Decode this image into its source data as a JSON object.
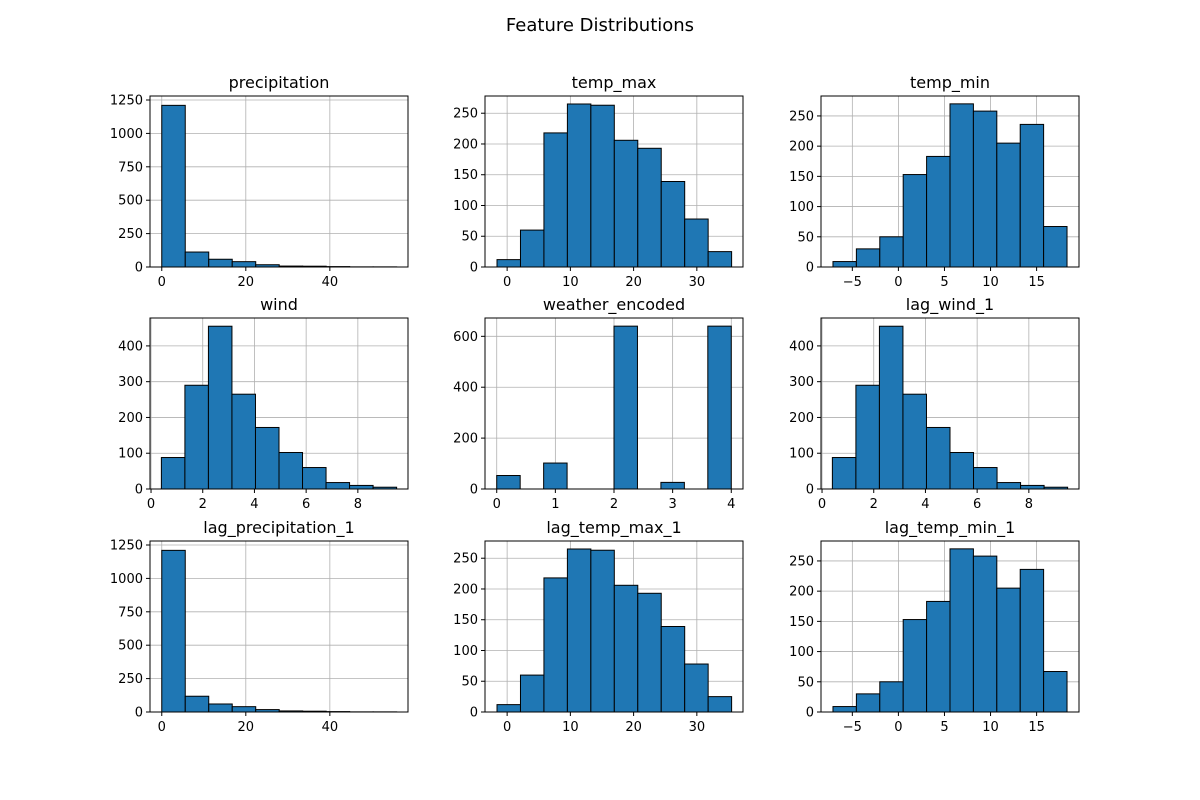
{
  "figure": {
    "title": "Feature Distributions",
    "bar_color": "#1f77b4",
    "edge_color": "#000000",
    "grid": true
  },
  "chart_data": [
    {
      "type": "bar",
      "title": "precipitation",
      "xlim": [
        -2.8,
        58.6
      ],
      "ylim": [
        0,
        1280
      ],
      "xticks": [
        0,
        20,
        40
      ],
      "yticks": [
        0,
        250,
        500,
        750,
        1000,
        1250
      ],
      "bin_edges": [
        0,
        5.59,
        11.18,
        16.77,
        22.36,
        27.95,
        33.54,
        39.13,
        44.72,
        50.31,
        55.9
      ],
      "counts": [
        1210,
        112,
        58,
        40,
        17,
        7,
        6,
        3,
        1,
        1
      ]
    },
    {
      "type": "bar",
      "title": "temp_max",
      "xlim": [
        -3.5,
        37.3
      ],
      "ylim": [
        0,
        278
      ],
      "xticks": [
        0,
        10,
        20,
        30
      ],
      "yticks": [
        0,
        50,
        100,
        150,
        200,
        250
      ],
      "bin_edges": [
        -1.6,
        2.11,
        5.82,
        9.53,
        13.24,
        16.95,
        20.66,
        24.37,
        28.08,
        31.79,
        35.5
      ],
      "counts": [
        12,
        60,
        218,
        265,
        263,
        206,
        193,
        139,
        78,
        25
      ]
    },
    {
      "type": "bar",
      "title": "temp_min",
      "xlim": [
        -8.4,
        19.6
      ],
      "ylim": [
        0,
        283
      ],
      "xticks": [
        -5,
        0,
        5,
        10,
        15
      ],
      "yticks": [
        0,
        50,
        100,
        150,
        200,
        250
      ],
      "bin_edges": [
        -7.1,
        -4.56,
        -2.02,
        0.52,
        3.06,
        5.6,
        8.14,
        10.68,
        13.22,
        15.76,
        18.3
      ],
      "counts": [
        9,
        30,
        50,
        153,
        183,
        270,
        258,
        205,
        236,
        67
      ]
    },
    {
      "type": "bar",
      "title": "wind",
      "xlim": [
        -0.04,
        9.94
      ],
      "ylim": [
        0,
        478
      ],
      "xticks": [
        0,
        2,
        4,
        6,
        8
      ],
      "yticks": [
        0,
        100,
        200,
        300,
        400
      ],
      "bin_edges": [
        0.4,
        1.31,
        2.22,
        3.13,
        4.04,
        4.95,
        5.86,
        6.77,
        7.68,
        8.59,
        9.5
      ],
      "counts": [
        88,
        290,
        455,
        265,
        172,
        102,
        60,
        18,
        10,
        5
      ]
    },
    {
      "type": "bar",
      "title": "weather_encoded",
      "xlim": [
        -0.2,
        4.2
      ],
      "ylim": [
        0,
        672
      ],
      "xticks": [
        0,
        1,
        2,
        3,
        4
      ],
      "yticks": [
        0,
        200,
        400,
        600
      ],
      "bin_edges": [
        0,
        0.4,
        0.8,
        1.2,
        1.6,
        2.0,
        2.4,
        2.8,
        3.2,
        3.6,
        4.0
      ],
      "counts": [
        53,
        0,
        102,
        0,
        0,
        640,
        0,
        26,
        0,
        640
      ]
    },
    {
      "type": "bar",
      "title": "lag_wind_1",
      "xlim": [
        -0.04,
        9.94
      ],
      "ylim": [
        0,
        478
      ],
      "xticks": [
        0,
        2,
        4,
        6,
        8
      ],
      "yticks": [
        0,
        100,
        200,
        300,
        400
      ],
      "bin_edges": [
        0.4,
        1.31,
        2.22,
        3.13,
        4.04,
        4.95,
        5.86,
        6.77,
        7.68,
        8.59,
        9.5
      ],
      "counts": [
        88,
        290,
        455,
        265,
        172,
        102,
        60,
        18,
        10,
        5
      ]
    },
    {
      "type": "bar",
      "title": "lag_precipitation_1",
      "xlim": [
        -2.8,
        58.6
      ],
      "ylim": [
        0,
        1280
      ],
      "xticks": [
        0,
        20,
        40
      ],
      "yticks": [
        0,
        250,
        500,
        750,
        1000,
        1250
      ],
      "bin_edges": [
        0,
        5.59,
        11.18,
        16.77,
        22.36,
        27.95,
        33.54,
        39.13,
        44.72,
        50.31,
        55.9
      ],
      "counts": [
        1210,
        118,
        60,
        40,
        18,
        8,
        6,
        3,
        1,
        1
      ]
    },
    {
      "type": "bar",
      "title": "lag_temp_max_1",
      "xlim": [
        -3.5,
        37.3
      ],
      "ylim": [
        0,
        278
      ],
      "xticks": [
        0,
        10,
        20,
        30
      ],
      "yticks": [
        0,
        50,
        100,
        150,
        200,
        250
      ],
      "bin_edges": [
        -1.6,
        2.11,
        5.82,
        9.53,
        13.24,
        16.95,
        20.66,
        24.37,
        28.08,
        31.79,
        35.5
      ],
      "counts": [
        12,
        60,
        218,
        265,
        263,
        206,
        193,
        139,
        78,
        25
      ]
    },
    {
      "type": "bar",
      "title": "lag_temp_min_1",
      "xlim": [
        -8.4,
        19.6
      ],
      "ylim": [
        0,
        283
      ],
      "xticks": [
        -5,
        0,
        5,
        10,
        15
      ],
      "yticks": [
        0,
        50,
        100,
        150,
        200,
        250
      ],
      "bin_edges": [
        -7.1,
        -4.56,
        -2.02,
        0.52,
        3.06,
        5.6,
        8.14,
        10.68,
        13.22,
        15.76,
        18.3
      ],
      "counts": [
        9,
        30,
        50,
        153,
        183,
        270,
        258,
        205,
        236,
        67
      ]
    }
  ]
}
